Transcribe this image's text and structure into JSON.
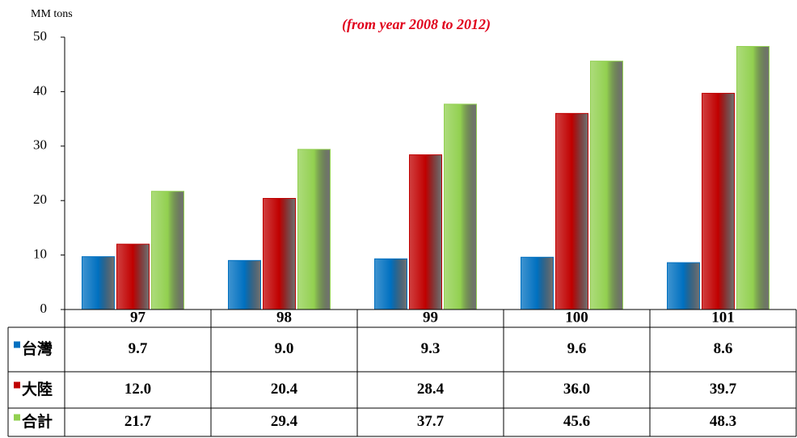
{
  "chart_data": {
    "type": "bar",
    "title": "(from year 2008 to 2012)",
    "y_label": "MM tons",
    "categories": [
      "97",
      "98",
      "99",
      "100",
      "101"
    ],
    "series": [
      {
        "name": "台灣",
        "color": "#0070c0",
        "values": [
          9.7,
          9.0,
          9.3,
          9.6,
          8.6
        ],
        "value_labels": [
          "9.7",
          "9.0",
          "9.3",
          "9.6",
          "8.6"
        ]
      },
      {
        "name": "大陸",
        "color": "#c00000",
        "values": [
          12.0,
          20.4,
          28.4,
          36.0,
          39.7
        ],
        "value_labels": [
          "12.0",
          "20.4",
          "28.4",
          "36.0",
          "39.7"
        ]
      },
      {
        "name": "合計",
        "color": "#92d050",
        "values": [
          21.7,
          29.4,
          37.7,
          45.6,
          48.3
        ],
        "value_labels": [
          "21.7",
          "29.4",
          "37.7",
          "45.6",
          "48.3"
        ]
      }
    ],
    "ylim": [
      0,
      50
    ],
    "yticks": [
      0,
      10,
      20,
      30,
      40,
      50
    ]
  }
}
